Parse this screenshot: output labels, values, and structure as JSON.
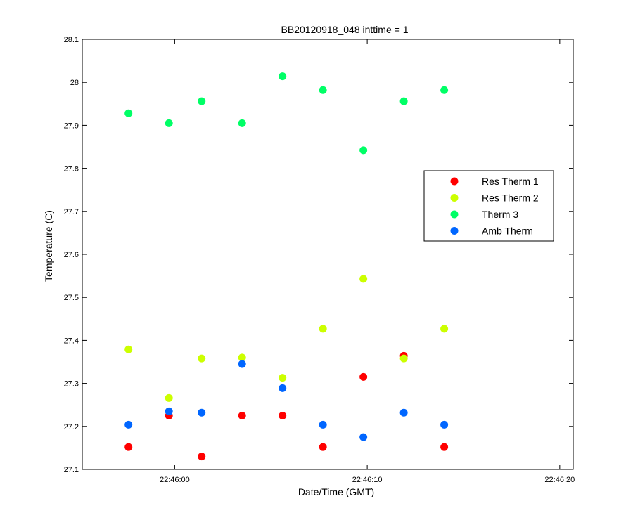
{
  "chart_data": {
    "type": "scatter",
    "title": "BB20120918_048 inttime = 1",
    "xlabel": "Date/Time (GMT)",
    "ylabel": "Temperature (C)",
    "xlim": [
      "22:45:55.2",
      "22:46:20.7"
    ],
    "ylim": [
      27.1,
      28.1
    ],
    "x_ticks": [
      "22:46:00",
      "22:46:10",
      "22:46:20"
    ],
    "y_ticks": [
      "27.1",
      "27.2",
      "27.3",
      "27.4",
      "27.5",
      "27.6",
      "27.7",
      "27.8",
      "27.9",
      "28",
      "28.1"
    ],
    "grid": false,
    "legend_position": "right",
    "x": [
      "22:45:57.6",
      "22:45:59.7",
      "22:46:01.4",
      "22:46:03.5",
      "22:46:05.6",
      "22:46:07.7",
      "22:46:09.8",
      "22:46:11.9",
      "22:46:14.0"
    ],
    "series": [
      {
        "name": "Res Therm 1",
        "color": "#ff0000",
        "values": [
          27.152,
          27.225,
          27.13,
          27.225,
          27.225,
          27.152,
          27.315,
          27.364,
          27.152
        ]
      },
      {
        "name": "Res Therm 2",
        "color": "#ccff00",
        "values": [
          27.379,
          27.266,
          27.358,
          27.36,
          27.313,
          27.427,
          27.543,
          27.358,
          27.427
        ]
      },
      {
        "name": "Therm 3",
        "color": "#00ff66",
        "values": [
          27.928,
          27.905,
          27.956,
          27.905,
          28.014,
          27.982,
          27.842,
          27.956,
          27.982
        ]
      },
      {
        "name": "Amb Therm",
        "color": "#0066ff",
        "values": [
          27.204,
          27.235,
          27.232,
          27.345,
          27.289,
          27.204,
          27.175,
          27.232,
          27.204
        ]
      }
    ]
  }
}
